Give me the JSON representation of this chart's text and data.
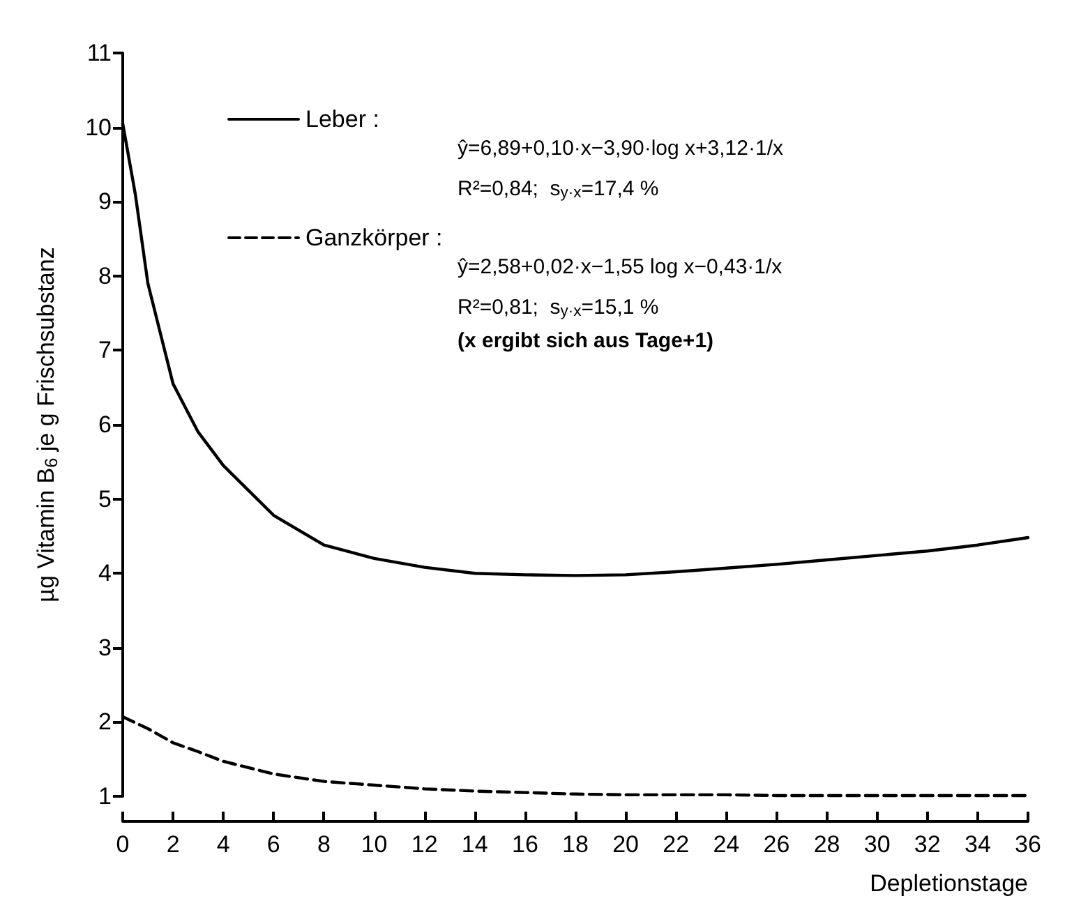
{
  "chart_data": {
    "type": "line",
    "xlabel": "Depletionstage",
    "ylabel": "µg Vitamin B$_{6}$ je g Frischsubstanz",
    "xlim": [
      0,
      36
    ],
    "xticks": [
      0,
      2,
      4,
      6,
      8,
      10,
      12,
      14,
      16,
      18,
      20,
      22,
      24,
      26,
      28,
      30,
      32,
      34,
      36
    ],
    "ylim": [
      1,
      11
    ],
    "yticks": [
      1,
      2,
      3,
      4,
      5,
      6,
      7,
      8,
      9,
      10,
      11
    ],
    "x": [
      0,
      0.5,
      1,
      2,
      3,
      4,
      6,
      8,
      10,
      12,
      14,
      16,
      18,
      20,
      22,
      24,
      26,
      28,
      30,
      32,
      34,
      36
    ],
    "series": [
      {
        "name": "Leber :",
        "color": "#000000",
        "line_style": "solid",
        "values": [
          10.05,
          9.1,
          7.9,
          6.55,
          5.9,
          5.45,
          4.78,
          4.38,
          4.2,
          4.08,
          4.0,
          3.98,
          3.97,
          3.98,
          4.02,
          4.07,
          4.12,
          4.18,
          4.24,
          4.3,
          4.38,
          4.48
        ]
      },
      {
        "name": "Ganzkörper :",
        "color": "#000000",
        "line_style": "dashed",
        "values": [
          2.07,
          1.99,
          1.91,
          1.72,
          1.6,
          1.47,
          1.3,
          1.2,
          1.15,
          1.1,
          1.07,
          1.05,
          1.03,
          1.02,
          1.02,
          1.02,
          1.01,
          1.01,
          1.01,
          1.01,
          1.01,
          1.01
        ]
      }
    ],
    "annotations": [
      "ŷ=6,89+0,10·x−3,90·log x+3,12·1/x",
      "R²=0,84;  s$_{y·x}$=17,4 %",
      "ŷ=2,58+0,02·x−1,55 log x−0,43·1/x",
      "R²=0,81;  s$_{y·x}$=15,1 %",
      "(x ergibt sich aus Tage+1)"
    ],
    "grid": false,
    "legend": "top left",
    "marker": "none"
  }
}
